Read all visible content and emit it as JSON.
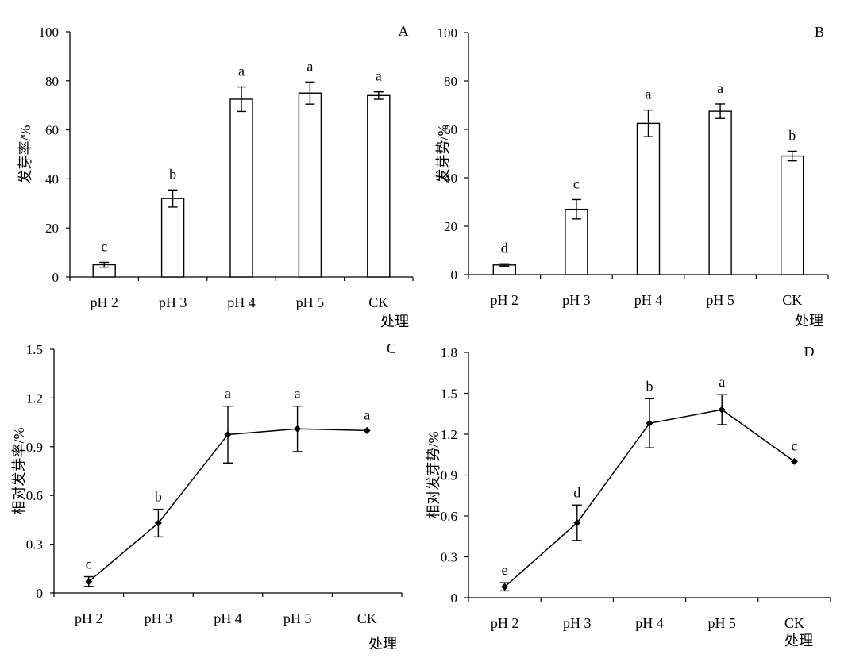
{
  "chart_data": [
    {
      "type": "bar",
      "panel": "A",
      "xlabel": "处理",
      "ylabel": "发芽率/%",
      "ylim": [
        0,
        100
      ],
      "yticks": [
        "0",
        "20",
        "40",
        "60",
        "80",
        "100"
      ],
      "categories": [
        "pH 2",
        "pH 3",
        "pH 4",
        "pH 5",
        "CK"
      ],
      "values": [
        5,
        32,
        72.5,
        75,
        74
      ],
      "errors": [
        1,
        3.5,
        5,
        4.5,
        1.5
      ],
      "significance": [
        "c",
        "b",
        "a",
        "a",
        "a"
      ],
      "grid": false
    },
    {
      "type": "bar",
      "panel": "B",
      "xlabel": "处理",
      "ylabel": "发芽势/%",
      "ylim": [
        0,
        100
      ],
      "yticks": [
        "0",
        "20",
        "40",
        "60",
        "80",
        "100"
      ],
      "categories": [
        "pH 2",
        "pH 3",
        "pH 4",
        "pH 5",
        "CK"
      ],
      "values": [
        4,
        27,
        62.5,
        67.5,
        49
      ],
      "errors": [
        0.5,
        4,
        5.5,
        3,
        2
      ],
      "significance": [
        "d",
        "c",
        "a",
        "a",
        "b"
      ],
      "grid": false
    },
    {
      "type": "line",
      "panel": "C",
      "xlabel": "处理",
      "ylabel": "相对发芽率/%",
      "ylim": [
        0,
        1.5
      ],
      "yticks": [
        "0",
        "0.3",
        "0.6",
        "0.9",
        "1.2",
        "1.5"
      ],
      "categories": [
        "pH 2",
        "pH 3",
        "pH 4",
        "pH 5",
        "CK"
      ],
      "values": [
        0.07,
        0.43,
        0.975,
        1.01,
        1.0
      ],
      "errors": [
        0.03,
        0.085,
        0.175,
        0.14,
        0
      ],
      "significance": [
        "c",
        "b",
        "a",
        "a",
        "a"
      ],
      "grid": false
    },
    {
      "type": "line",
      "panel": "D",
      "xlabel": "处理",
      "ylabel": "相对发芽势/%",
      "ylim": [
        0,
        1.8
      ],
      "yticks": [
        "0",
        "0.3",
        "0.6",
        "0.9",
        "1.2",
        "1.5",
        "1.8"
      ],
      "categories": [
        "pH 2",
        "pH 3",
        "pH 4",
        "pH 5",
        "CK"
      ],
      "values": [
        0.08,
        0.55,
        1.28,
        1.38,
        1.0
      ],
      "errors": [
        0.03,
        0.13,
        0.18,
        0.11,
        0
      ],
      "significance": [
        "e",
        "d",
        "b",
        "a",
        "c"
      ],
      "grid": false
    }
  ]
}
